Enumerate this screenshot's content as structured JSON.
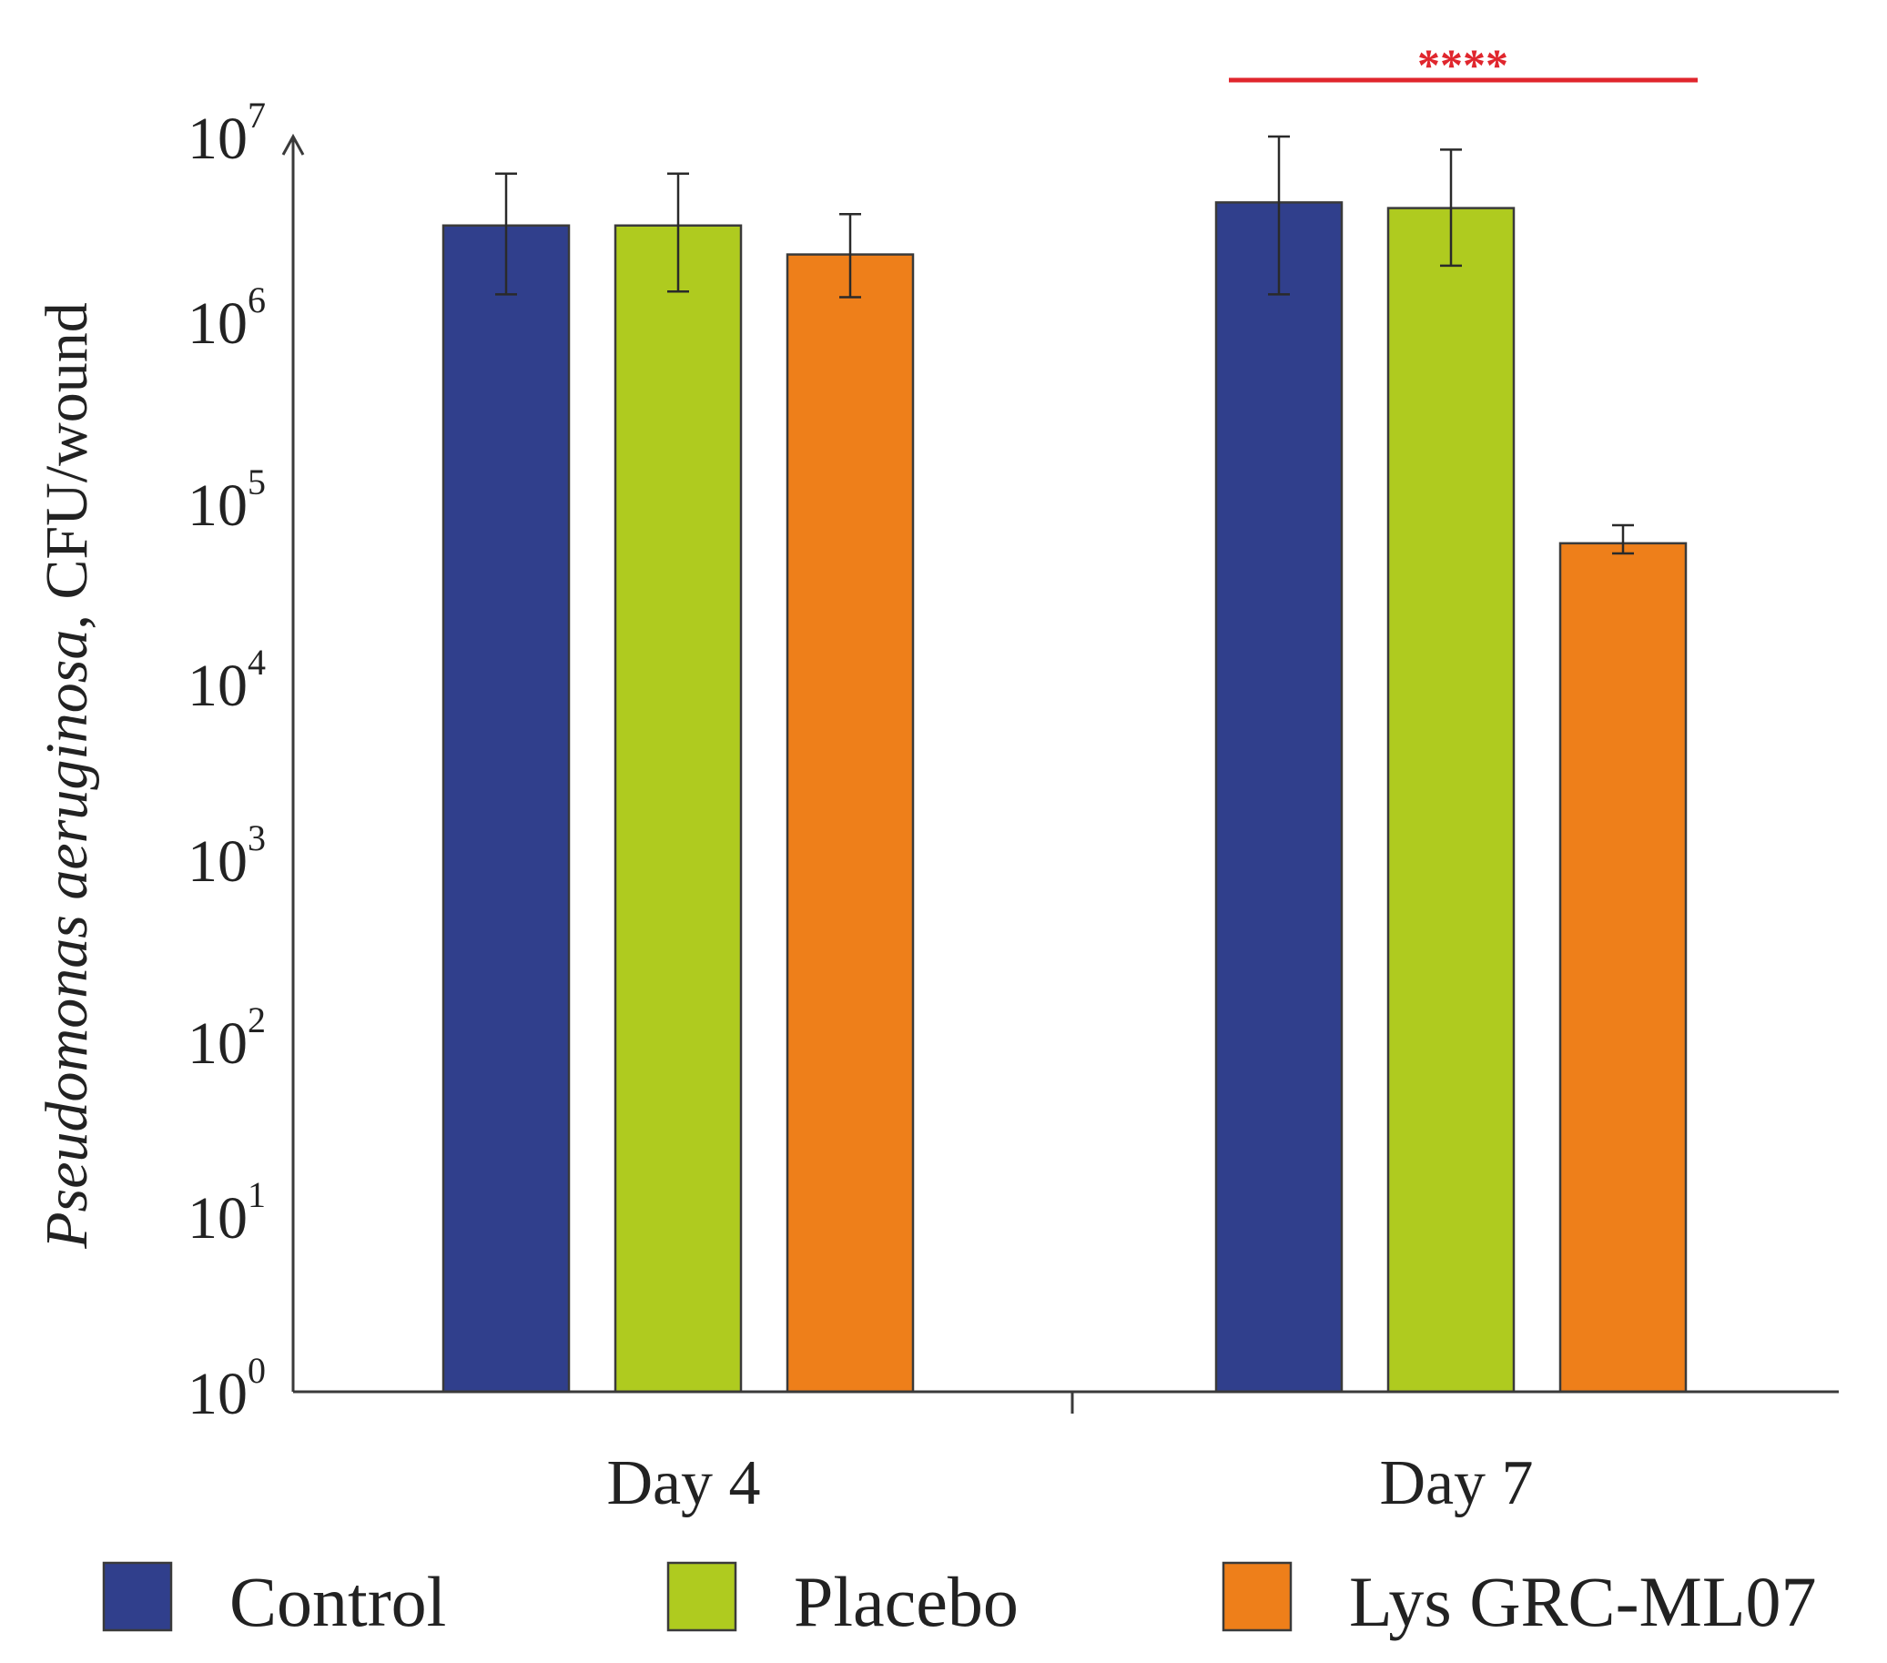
{
  "chart_data": {
    "type": "bar",
    "title": "",
    "xlabel": "",
    "ylabel": {
      "italic_part": "Pseudomonas aeruginosa",
      "plain_part": ", CFU/wound"
    },
    "yscale": "log",
    "ylim": [
      1,
      10000000
    ],
    "yticks": [
      {
        "base": "10",
        "exp": "0",
        "value": 1
      },
      {
        "base": "10",
        "exp": "1",
        "value": 10
      },
      {
        "base": "10",
        "exp": "2",
        "value": 100
      },
      {
        "base": "10",
        "exp": "3",
        "value": 1000
      },
      {
        "base": "10",
        "exp": "4",
        "value": 10000
      },
      {
        "base": "10",
        "exp": "5",
        "value": 100000
      },
      {
        "base": "10",
        "exp": "6",
        "value": 1000000
      },
      {
        "base": "10",
        "exp": "7",
        "value": 10000000
      }
    ],
    "categories": [
      "Day 4",
      "Day 7"
    ],
    "series": [
      {
        "name": "Control",
        "color": "#303f8c",
        "values": [
          3300000,
          4400000
        ],
        "error_low": [
          1400000,
          1400000
        ],
        "error_high": [
          6300000,
          10000000
        ]
      },
      {
        "name": "Placebo",
        "color": "#afcb1f",
        "values": [
          3300000,
          4100000
        ],
        "error_low": [
          1450000,
          2000000
        ],
        "error_high": [
          6300000,
          8500000
        ]
      },
      {
        "name": "Lys GRC-ML07",
        "color": "#ee7f1a",
        "values": [
          2300000,
          57000
        ],
        "error_low": [
          1350000,
          50000
        ],
        "error_high": [
          3800000,
          72000
        ]
      }
    ],
    "annotations": [
      {
        "text": "****",
        "category": "Day 7",
        "color": "#e0262d"
      }
    ],
    "legend": {
      "position": "bottom"
    },
    "grid": false
  }
}
